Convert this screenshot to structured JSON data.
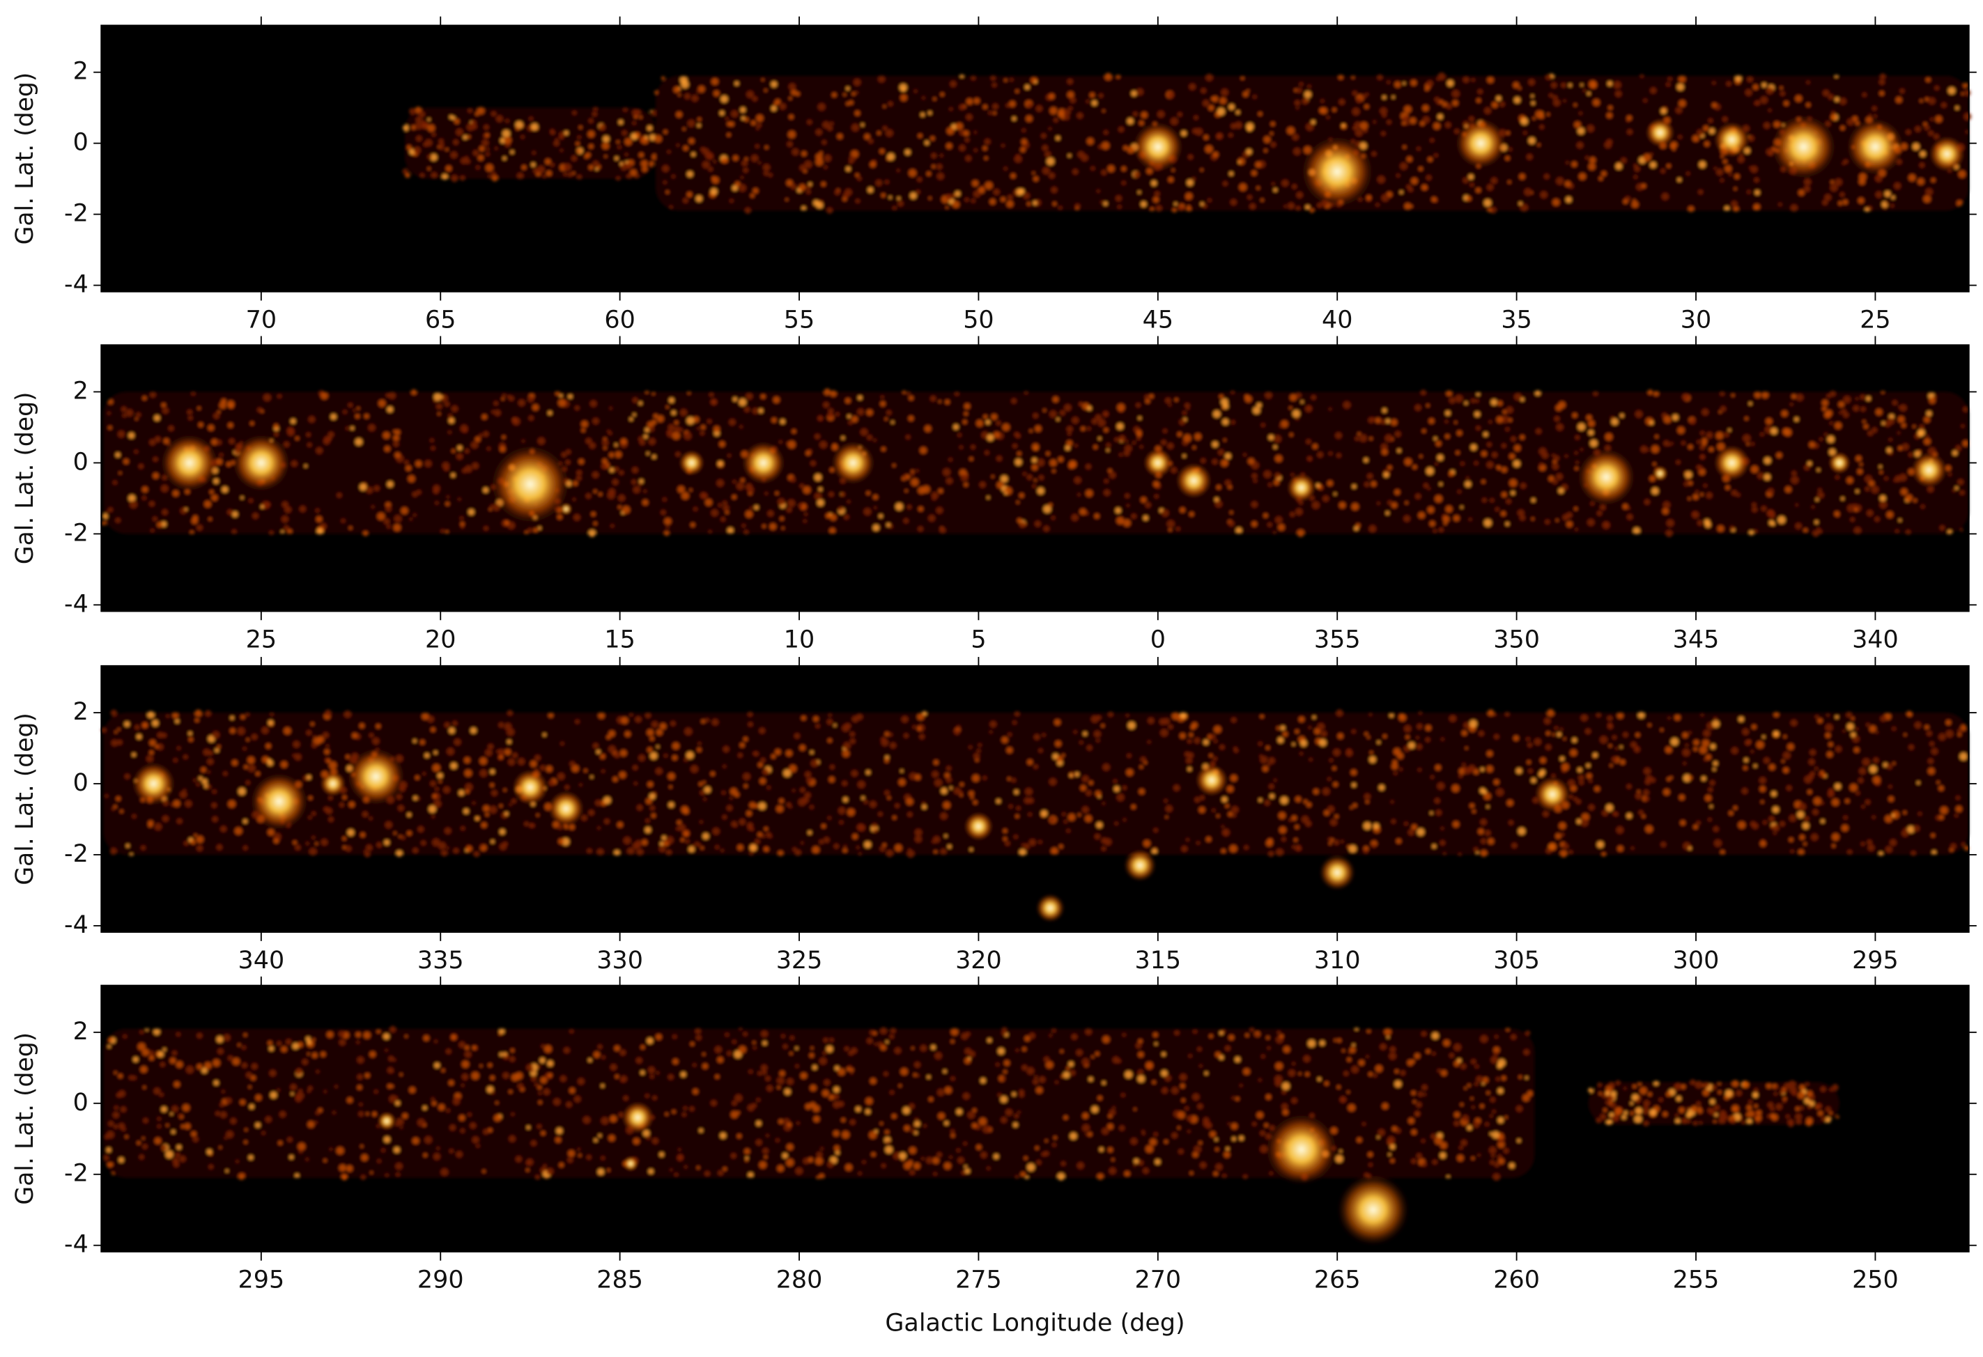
{
  "chart_data": [
    {
      "type": "image",
      "ylabel": "Gal. Lat. (deg)",
      "xlim": [
        74.46,
        22.39
      ],
      "ylim": [
        -4.18,
        3.32
      ],
      "xticks": [
        70,
        65,
        60,
        55,
        50,
        45,
        40,
        35,
        30,
        25
      ],
      "yticks": [
        -4,
        -2,
        0,
        2
      ]
    },
    {
      "type": "image",
      "ylabel": "Gal. Lat. (deg)",
      "xlim": [
        29.46,
        -22.61
      ],
      "ylim": [
        -4.18,
        3.32
      ],
      "xticks": [
        25,
        20,
        15,
        10,
        5,
        0,
        {
          "value": -5,
          "label": "355"
        },
        {
          "value": -10,
          "label": "350"
        },
        {
          "value": -15,
          "label": "345"
        },
        {
          "value": -20,
          "label": "340"
        }
      ],
      "yticks": [
        -4,
        -2,
        0,
        2
      ]
    },
    {
      "type": "image",
      "ylabel": "Gal. Lat. (deg)",
      "xlim": [
        344.46,
        292.39
      ],
      "ylim": [
        -4.18,
        3.32
      ],
      "xticks": [
        340,
        335,
        330,
        325,
        320,
        315,
        310,
        305,
        300,
        295
      ],
      "yticks": [
        -4,
        -2,
        0,
        2
      ]
    },
    {
      "type": "image",
      "ylabel": "Gal. Lat. (deg)",
      "xlabel": "Galactic Longitude (deg)",
      "xlim": [
        299.46,
        247.39
      ],
      "ylim": [
        -4.18,
        3.32
      ],
      "xticks": [
        295,
        290,
        285,
        280,
        275,
        270,
        265,
        260,
        255,
        250
      ],
      "yticks": [
        -4,
        -2,
        0,
        2
      ]
    }
  ]
}
